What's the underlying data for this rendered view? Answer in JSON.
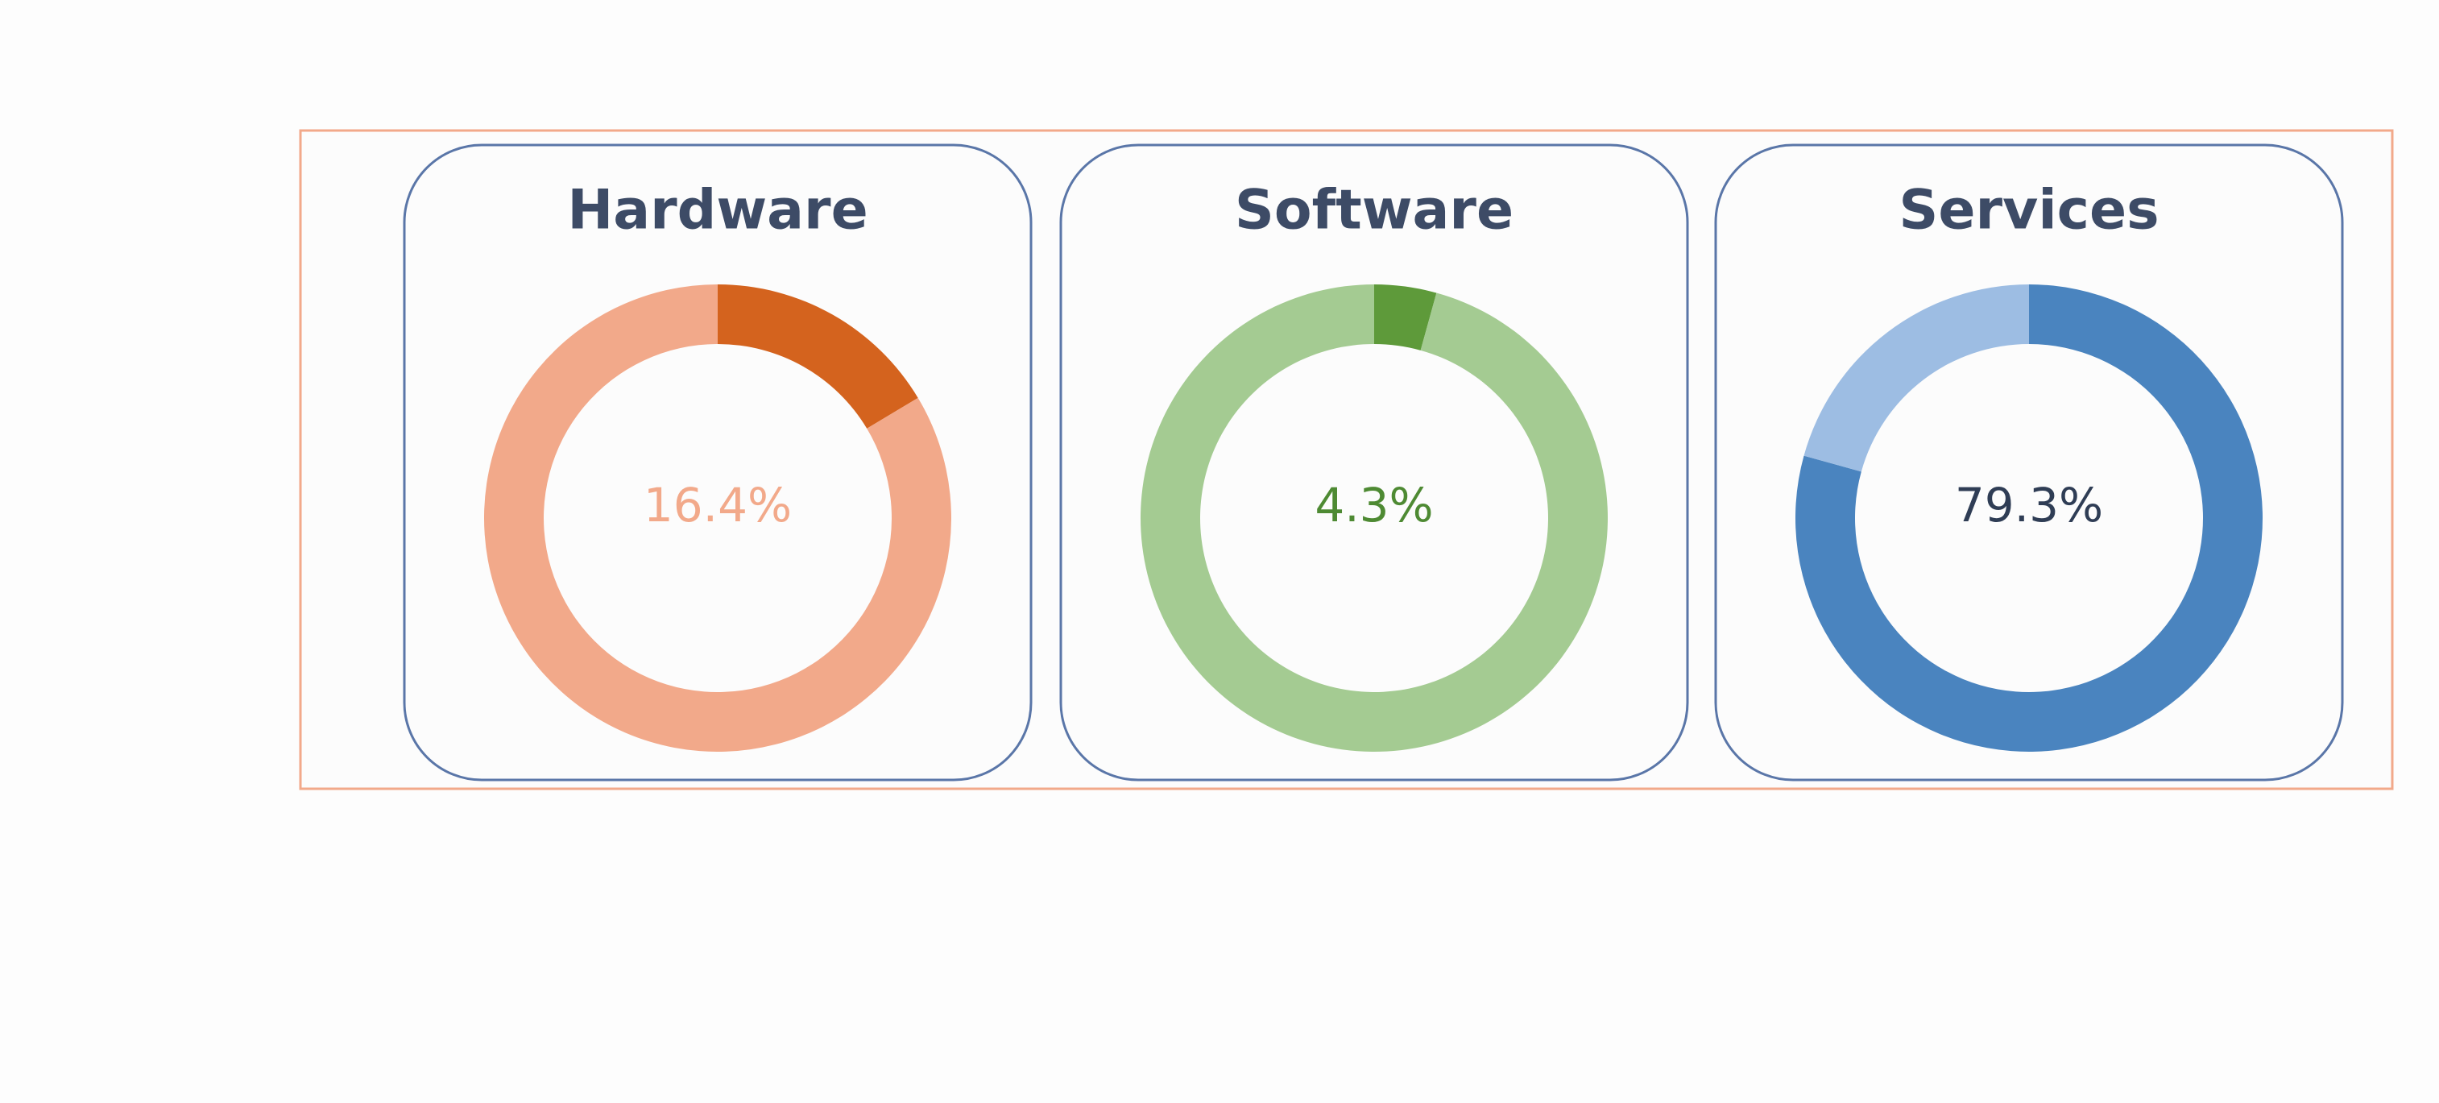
{
  "chart_data": [
    {
      "type": "donut",
      "title": "Hardware",
      "values": [
        16.4,
        83.6
      ],
      "value_labels": [
        "16.4%",
        null
      ],
      "colors": [
        "#d4631e",
        "#f2a98a"
      ],
      "label_color": "#f2a98a"
    },
    {
      "type": "donut",
      "title": "Software",
      "values": [
        4.3,
        95.7
      ],
      "value_labels": [
        "4.3%",
        null
      ],
      "colors": [
        "#5e9a3a",
        "#a4cb92"
      ],
      "label_color": "#4e8a33"
    },
    {
      "type": "donut",
      "title": "Services",
      "values": [
        79.3,
        20.7
      ],
      "value_labels": [
        "79.3%",
        null
      ],
      "colors": [
        "#4a84bf",
        "#9dbde3"
      ],
      "label_color": "#2f3d55"
    }
  ]
}
